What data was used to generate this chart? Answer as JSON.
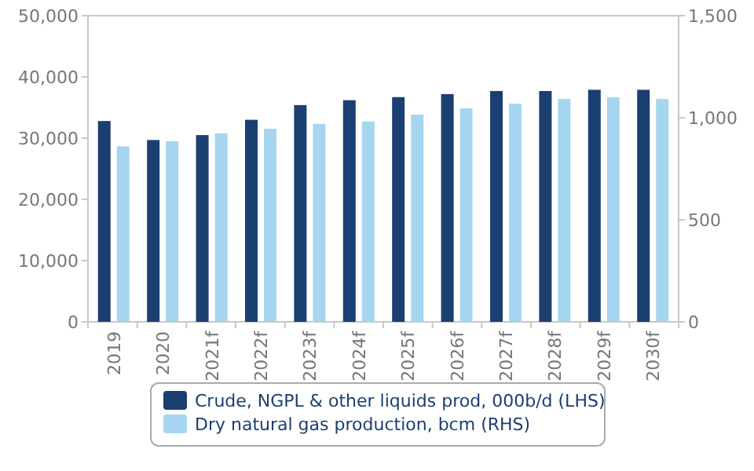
{
  "chart_data": {
    "type": "bar",
    "categories": [
      "2019",
      "2020",
      "2021f",
      "2022f",
      "2023f",
      "2024f",
      "2025f",
      "2026f",
      "2027f",
      "2028f",
      "2029f",
      "2030f"
    ],
    "series": [
      {
        "name": "Crude, NGPL & other liquids prod, 000b/d (LHS)",
        "color": "#1b3f70",
        "values": [
          32800,
          29700,
          30500,
          33000,
          35400,
          36200,
          36700,
          37200,
          37700,
          37700,
          37900,
          37900
        ]
      },
      {
        "name": "Dry natural gas production, bcm (RHS)",
        "color": "#a6d6ef",
        "axis": "y2",
        "values": [
          860,
          885,
          923,
          946,
          970,
          982,
          1015,
          1046,
          1069,
          1092,
          1100,
          1092
        ]
      }
    ],
    "ylim": [
      0,
      50000
    ],
    "yticks": [
      {
        "value": 0,
        "label": "0"
      },
      {
        "value": 10000,
        "label": "10,000"
      },
      {
        "value": 20000,
        "label": "20,000"
      },
      {
        "value": 30000,
        "label": "30,000"
      },
      {
        "value": 40000,
        "label": "40,000"
      },
      {
        "value": 50000,
        "label": "50,000"
      }
    ],
    "y2lim": [
      0,
      1500
    ],
    "y2ticks": [
      {
        "value": 0,
        "label": "0"
      },
      {
        "value": 500,
        "label": "500"
      },
      {
        "value": 1000,
        "label": "1,000"
      },
      {
        "value": 1500,
        "label": "1,500"
      }
    ],
    "grid": false,
    "legend": "bottom"
  }
}
